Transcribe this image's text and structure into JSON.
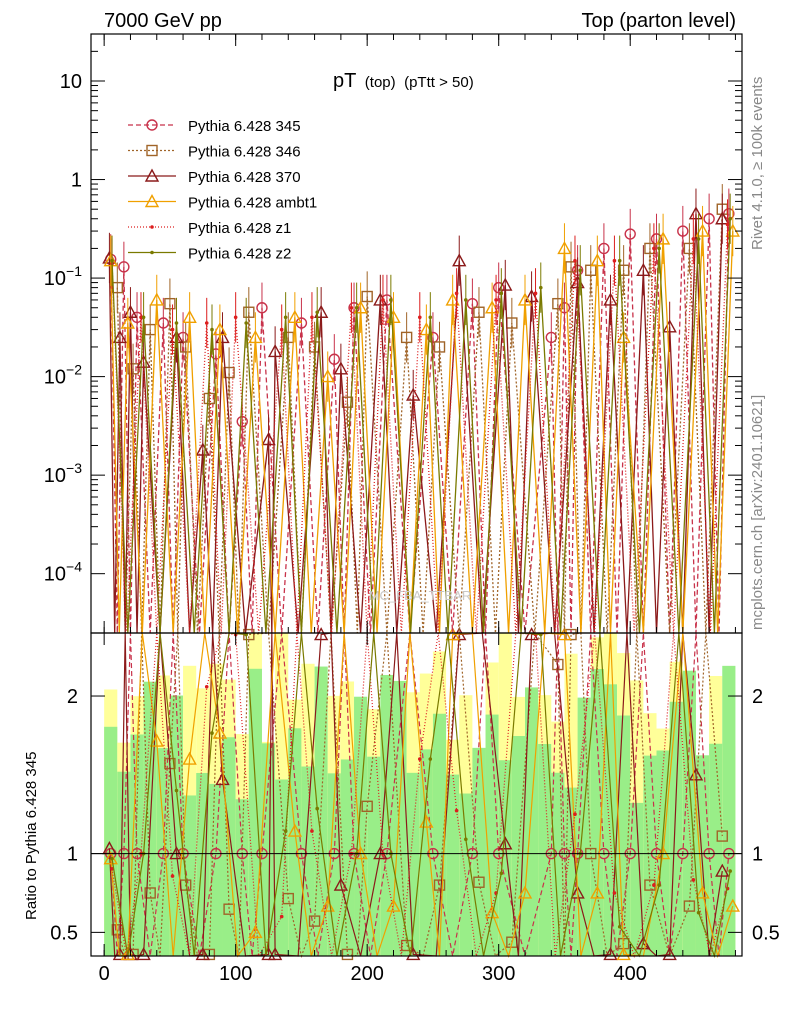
{
  "header": {
    "left": "7000 GeV pp",
    "right": "Top (parton level)"
  },
  "side_labels": {
    "rivet": "Rivet 4.1.0, ≥ 100k events",
    "mcplots": "mcplots.cern.ch [arXiv:2401.10621]"
  },
  "watermark": "MC_FBA_TTBAR",
  "chart_data": {
    "type": "line",
    "title": "pT",
    "title_sub1": "(top)",
    "title_sub2": "(pTtt > 50)",
    "xlim": [
      -10,
      485
    ],
    "main_ylim": [
      2.5e-05,
      30
    ],
    "main_yscale": "log",
    "main_yticks": [
      {
        "value": 10,
        "label": "10"
      },
      {
        "value": 1,
        "label": "1"
      },
      {
        "value": 0.1,
        "label": "10^-1"
      },
      {
        "value": 0.01,
        "label": "10^-2"
      },
      {
        "value": 0.001,
        "label": "10^-3"
      },
      {
        "value": 0.0001,
        "label": "10^-4"
      }
    ],
    "xticks": [
      {
        "value": 0,
        "label": "0"
      },
      {
        "value": 100,
        "label": "100"
      },
      {
        "value": 200,
        "label": "200"
      },
      {
        "value": 300,
        "label": "300"
      },
      {
        "value": 400,
        "label": "400"
      }
    ],
    "ratio_ylim": [
      0.35,
      2.4
    ],
    "ratio_ylabel": "Ratio to Pythia 6.428 345",
    "ratio_yticks": [
      {
        "value": 0.5,
        "label": "0.5"
      },
      {
        "value": 1,
        "label": "1"
      },
      {
        "value": 2,
        "label": "2"
      }
    ],
    "series": [
      {
        "name": "Pythia 6.428 345",
        "color": "#c8324a",
        "marker": "circle",
        "dash": "5,3",
        "points": [
          [
            5,
            0.155
          ],
          [
            15,
            0.13
          ],
          [
            25,
            0.04
          ],
          [
            45,
            0.035
          ],
          [
            60,
            0.025
          ],
          [
            85,
            0.017
          ],
          [
            105,
            0.0035
          ],
          [
            120,
            0.05
          ],
          [
            150,
            0.035
          ],
          [
            175,
            0.015
          ],
          [
            190,
            0.05
          ],
          [
            215,
            0.06
          ],
          [
            250,
            0.025
          ],
          [
            280,
            0.055
          ],
          [
            300,
            0.08
          ],
          [
            340,
            0.025
          ],
          [
            350,
            0.05
          ],
          [
            360,
            0.12
          ],
          [
            380,
            0.2
          ],
          [
            400,
            0.28
          ],
          [
            420,
            0.25
          ],
          [
            440,
            0.3
          ],
          [
            460,
            0.4
          ],
          [
            475,
            0.45
          ]
        ]
      },
      {
        "name": "Pythia 6.428 346",
        "color": "#a06428",
        "marker": "square",
        "dash": "2,2",
        "points": [
          [
            10,
            0.08
          ],
          [
            22,
            0.012
          ],
          [
            35,
            0.03
          ],
          [
            50,
            0.055
          ],
          [
            62,
            0.02
          ],
          [
            80,
            0.006
          ],
          [
            95,
            0.011
          ],
          [
            110,
            0.045
          ],
          [
            140,
            0.025
          ],
          [
            160,
            0.02
          ],
          [
            185,
            0.0055
          ],
          [
            200,
            0.065
          ],
          [
            230,
            0.025
          ],
          [
            255,
            0.02
          ],
          [
            285,
            0.045
          ],
          [
            310,
            0.035
          ],
          [
            345,
            0.055
          ],
          [
            355,
            0.13
          ],
          [
            370,
            0.12
          ],
          [
            395,
            0.12
          ],
          [
            415,
            0.2
          ],
          [
            445,
            0.2
          ],
          [
            470,
            0.5
          ]
        ]
      },
      {
        "name": "Pythia 6.428 370",
        "color": "#8b1a1a",
        "marker": "triangle",
        "dash": "",
        "points": [
          [
            4,
            0.16
          ],
          [
            12,
            0.025
          ],
          [
            20,
            0.045
          ],
          [
            30,
            0.014
          ],
          [
            55,
            0.025
          ],
          [
            75,
            0.0018
          ],
          [
            90,
            0.025
          ],
          [
            125,
            0.0023
          ],
          [
            130,
            0.018
          ],
          [
            165,
            0.045
          ],
          [
            180,
            0.012
          ],
          [
            210,
            0.06
          ],
          [
            235,
            0.0065
          ],
          [
            270,
            0.15
          ],
          [
            305,
            0.085
          ],
          [
            325,
            0.065
          ],
          [
            360,
            0.09
          ],
          [
            385,
            0.06
          ],
          [
            410,
            0.12
          ],
          [
            430,
            0.032
          ],
          [
            450,
            0.45
          ],
          [
            470,
            0.4
          ]
        ]
      },
      {
        "name": "Pythia 6.428 ambt1",
        "color": "#f0a000",
        "marker": "triangle",
        "dash": "",
        "points": [
          [
            5,
            0.15
          ],
          [
            18,
            0.035
          ],
          [
            40,
            0.06
          ],
          [
            65,
            0.04
          ],
          [
            88,
            0.03
          ],
          [
            115,
            0.025
          ],
          [
            145,
            0.04
          ],
          [
            170,
            0.01
          ],
          [
            195,
            0.05
          ],
          [
            220,
            0.04
          ],
          [
            245,
            0.03
          ],
          [
            265,
            0.06
          ],
          [
            295,
            0.05
          ],
          [
            320,
            0.06
          ],
          [
            350,
            0.2
          ],
          [
            375,
            0.15
          ],
          [
            395,
            0.025
          ],
          [
            425,
            0.25
          ],
          [
            455,
            0.3
          ],
          [
            478,
            0.3
          ]
        ]
      },
      {
        "name": "Pythia 6.428 z1",
        "color": "#dc1e1e",
        "marker": "dot",
        "dash": "1,2",
        "points": [
          [
            6,
            0.14
          ],
          [
            28,
            0.04
          ],
          [
            52,
            0.03
          ],
          [
            78,
            0.035
          ],
          [
            100,
            0.04
          ],
          [
            135,
            0.03
          ],
          [
            158,
            0.04
          ],
          [
            188,
            0.05
          ],
          [
            212,
            0.06
          ],
          [
            240,
            0.04
          ],
          [
            268,
            0.07
          ],
          [
            298,
            0.06
          ],
          [
            328,
            0.07
          ],
          [
            358,
            0.15
          ],
          [
            388,
            0.15
          ],
          [
            418,
            0.2
          ],
          [
            448,
            0.25
          ],
          [
            474,
            0.35
          ]
        ]
      },
      {
        "name": "Pythia 6.428 z2",
        "color": "#7a7a00",
        "marker": "dot",
        "dash": "",
        "points": [
          [
            6,
            0.15
          ],
          [
            30,
            0.04
          ],
          [
            55,
            0.035
          ],
          [
            82,
            0.03
          ],
          [
            108,
            0.035
          ],
          [
            138,
            0.04
          ],
          [
            162,
            0.045
          ],
          [
            192,
            0.05
          ],
          [
            218,
            0.06
          ],
          [
            248,
            0.04
          ],
          [
            275,
            0.06
          ],
          [
            302,
            0.07
          ],
          [
            332,
            0.08
          ],
          [
            362,
            0.12
          ],
          [
            392,
            0.15
          ],
          [
            422,
            0.2
          ],
          [
            452,
            0.25
          ],
          [
            476,
            0.4
          ]
        ]
      }
    ]
  }
}
